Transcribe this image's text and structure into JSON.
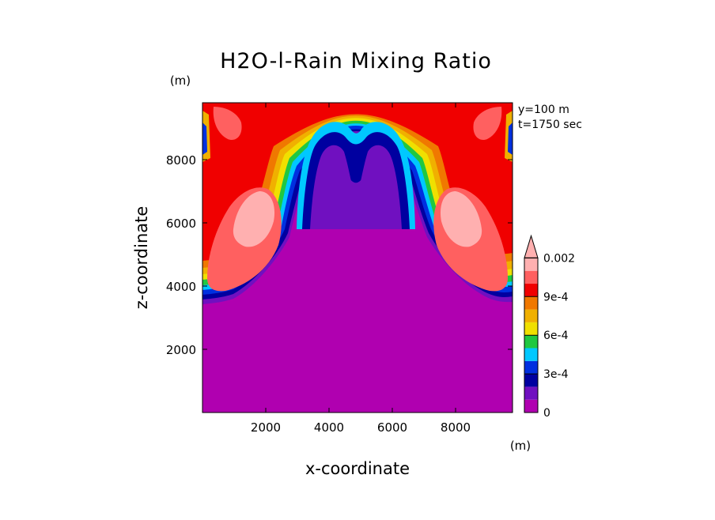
{
  "chart_data": {
    "type": "heatmap",
    "title": "H2O-l-Rain Mixing Ratio",
    "xlabel": "x-coordinate",
    "ylabel": "z-coordinate",
    "x_unit": "(m)",
    "y_unit": "(m)",
    "info": [
      "y=100 m",
      "t=1750 sec"
    ],
    "xlim": [
      0,
      9800
    ],
    "ylim": [
      0,
      9800
    ],
    "x_ticks": [
      2000,
      4000,
      6000,
      8000
    ],
    "y_ticks": [
      2000,
      4000,
      6000,
      8000
    ],
    "x_tick_labels": [
      "2000",
      "4000",
      "6000",
      "8000"
    ],
    "y_tick_labels": [
      "2000",
      "4000",
      "6000",
      "8000"
    ],
    "colorbar": {
      "colors": [
        "#b000b0",
        "#7010c0",
        "#0000a0",
        "#0030e0",
        "#00c8ff",
        "#20c840",
        "#f0e000",
        "#f0b000",
        "#f07800",
        "#f00000",
        "#ff6060",
        "#ffb0b0"
      ],
      "labels": [
        {
          "text": "0",
          "value": 0
        },
        {
          "text": "3e-4",
          "value": 0.0003
        },
        {
          "text": "6e-4",
          "value": 0.0006
        },
        {
          "text": "9e-4",
          "value": 0.0009
        },
        {
          "text": "0.002",
          "value": 0.002
        }
      ],
      "extend": "max"
    }
  }
}
